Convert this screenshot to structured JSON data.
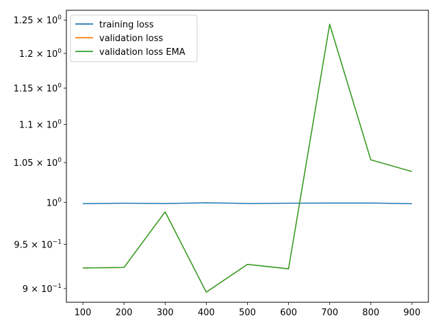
{
  "chart_data": {
    "type": "line",
    "title": "",
    "xlabel": "",
    "ylabel": "",
    "x": [
      100,
      200,
      300,
      400,
      500,
      600,
      700,
      800,
      900
    ],
    "xlim": [
      60,
      940
    ],
    "ylim": [
      0.885,
      1.265
    ],
    "yscale": "log",
    "grid": false,
    "legend_position": "top-left",
    "x_ticks": [
      {
        "value": 100,
        "label": "100"
      },
      {
        "value": 200,
        "label": "200"
      },
      {
        "value": 300,
        "label": "300"
      },
      {
        "value": 400,
        "label": "400"
      },
      {
        "value": 500,
        "label": "500"
      },
      {
        "value": 600,
        "label": "600"
      },
      {
        "value": 700,
        "label": "700"
      },
      {
        "value": 800,
        "label": "800"
      },
      {
        "value": 900,
        "label": "900"
      }
    ],
    "y_ticks": [
      {
        "value": 0.9,
        "mantissa": "9 × 10",
        "exponent": "−1"
      },
      {
        "value": 0.95,
        "mantissa": "9.5 × 10",
        "exponent": "−1"
      },
      {
        "value": 1.0,
        "mantissa": "1",
        "exponent": "0",
        "plain": "10"
      },
      {
        "value": 1.05,
        "mantissa": "1.05 × 10",
        "exponent": "0"
      },
      {
        "value": 1.1,
        "mantissa": "1.1 × 10",
        "exponent": "0"
      },
      {
        "value": 1.15,
        "mantissa": "1.15 × 10",
        "exponent": "0"
      },
      {
        "value": 1.2,
        "mantissa": "1.2 × 10",
        "exponent": "0"
      },
      {
        "value": 1.25,
        "mantissa": "1.25 × 10",
        "exponent": "0"
      }
    ],
    "series": [
      {
        "name": "training loss",
        "color": "#1f77b4",
        "values": [
          0.9985,
          0.999,
          0.9987,
          0.9995,
          0.9987,
          0.999,
          0.9992,
          0.9992,
          0.9985
        ]
      },
      {
        "name": "validation loss",
        "color": "#ff7f0e",
        "values": [
          0.923,
          0.9235,
          0.9885,
          0.896,
          0.927,
          0.922,
          1.2435,
          1.0535,
          1.0385
        ]
      },
      {
        "name": "validation loss EMA",
        "color": "#2ca02c",
        "values": [
          0.923,
          0.9235,
          0.9885,
          0.896,
          0.927,
          0.922,
          1.2435,
          1.0535,
          1.0385
        ]
      }
    ]
  }
}
